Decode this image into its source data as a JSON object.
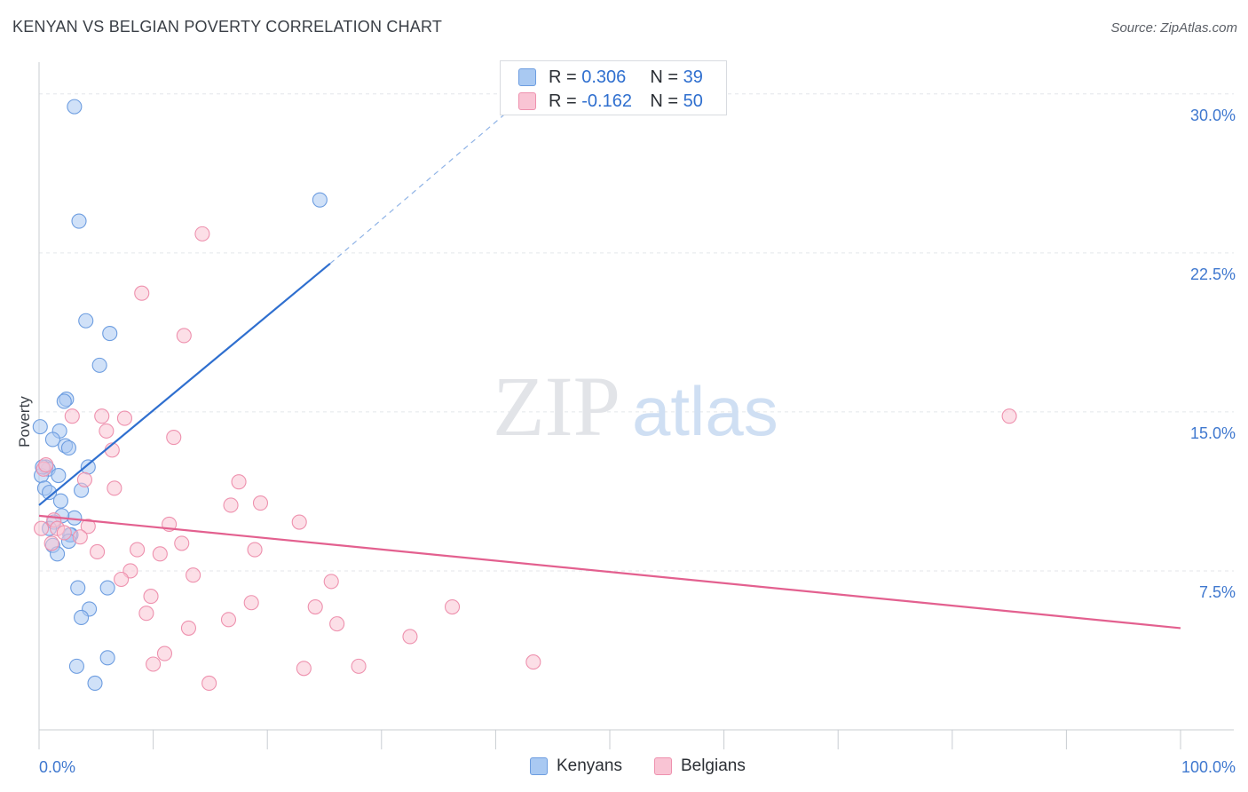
{
  "title": "KENYAN VS BELGIAN POVERTY CORRELATION CHART",
  "source": "Source: ZipAtlas.com",
  "watermark": {
    "zip": "ZIP",
    "atlas": "atlas"
  },
  "legend_box": [
    {
      "r_label": "R =",
      "r_value": "0.306",
      "n_label": "N =",
      "n_value": "39",
      "color": "#a9c9f2",
      "border": "#6d9de0"
    },
    {
      "r_label": "R =",
      "r_value": "-0.162",
      "n_label": "N =",
      "n_value": "50",
      "color": "#f9c4d4",
      "border": "#ee91ae"
    }
  ],
  "bottom_legend": [
    {
      "label": "Kenyans",
      "color": "#a9c9f2",
      "border": "#6d9de0"
    },
    {
      "label": "Belgians",
      "color": "#f9c4d4",
      "border": "#ee91ae"
    }
  ],
  "chart_data": {
    "type": "scatter",
    "title": "KENYAN VS BELGIAN POVERTY CORRELATION CHART",
    "xlabel": "",
    "ylabel": "Poverty",
    "xlim": [
      0,
      100
    ],
    "ylim": [
      0,
      31.5
    ],
    "x_tick_labels": [
      "0.0%",
      "100.0%"
    ],
    "y_ticks": [
      7.5,
      15.0,
      22.5,
      30.0
    ],
    "y_tick_labels": [
      "7.5%",
      "15.0%",
      "22.5%",
      "30.0%"
    ],
    "series": [
      {
        "name": "Kenyans",
        "color": "#6d9de0",
        "fill": "#a9c9f2",
        "trendline": {
          "x": [
            0,
            25.5
          ],
          "y": [
            10.6,
            22.0
          ],
          "extended_to": [
            42,
            29.6
          ],
          "color": "#2f6fcf"
        },
        "points": [
          [
            3.1,
            29.4
          ],
          [
            3.5,
            24.0
          ],
          [
            24.6,
            25.0
          ],
          [
            4.1,
            19.3
          ],
          [
            6.2,
            18.7
          ],
          [
            5.3,
            17.2
          ],
          [
            2.4,
            15.6
          ],
          [
            2.2,
            15.5
          ],
          [
            0.1,
            14.3
          ],
          [
            1.8,
            14.1
          ],
          [
            1.2,
            13.7
          ],
          [
            2.3,
            13.4
          ],
          [
            2.6,
            13.3
          ],
          [
            4.3,
            12.4
          ],
          [
            0.6,
            12.4
          ],
          [
            0.8,
            12.3
          ],
          [
            0.2,
            12.0
          ],
          [
            1.7,
            12.0
          ],
          [
            0.5,
            11.4
          ],
          [
            0.9,
            11.2
          ],
          [
            3.7,
            11.3
          ],
          [
            1.9,
            10.8
          ],
          [
            3.1,
            10.0
          ],
          [
            2.0,
            10.1
          ],
          [
            1.3,
            9.8
          ],
          [
            0.9,
            9.5
          ],
          [
            2.8,
            9.2
          ],
          [
            2.7,
            9.2
          ],
          [
            2.6,
            8.9
          ],
          [
            1.2,
            8.7
          ],
          [
            1.6,
            8.3
          ],
          [
            3.4,
            6.7
          ],
          [
            6.0,
            6.7
          ],
          [
            4.4,
            5.7
          ],
          [
            3.7,
            5.3
          ],
          [
            6.0,
            3.4
          ],
          [
            3.3,
            3.0
          ],
          [
            4.9,
            2.2
          ],
          [
            0.3,
            12.4
          ]
        ]
      },
      {
        "name": "Belgians",
        "color": "#ee91ae",
        "fill": "#f9c4d4",
        "trendline": {
          "x": [
            0,
            100
          ],
          "y": [
            10.1,
            4.8
          ],
          "color": "#e3608f"
        },
        "points": [
          [
            14.3,
            23.4
          ],
          [
            9.0,
            20.6
          ],
          [
            12.7,
            18.6
          ],
          [
            2.9,
            14.8
          ],
          [
            5.5,
            14.8
          ],
          [
            7.5,
            14.7
          ],
          [
            85.0,
            14.8
          ],
          [
            5.9,
            14.1
          ],
          [
            11.8,
            13.8
          ],
          [
            6.4,
            13.2
          ],
          [
            0.4,
            12.3
          ],
          [
            0.6,
            12.5
          ],
          [
            4.0,
            11.8
          ],
          [
            17.5,
            11.7
          ],
          [
            6.6,
            11.4
          ],
          [
            19.4,
            10.7
          ],
          [
            16.8,
            10.6
          ],
          [
            1.3,
            9.9
          ],
          [
            11.4,
            9.7
          ],
          [
            22.8,
            9.8
          ],
          [
            4.3,
            9.6
          ],
          [
            1.6,
            9.5
          ],
          [
            2.2,
            9.3
          ],
          [
            3.6,
            9.1
          ],
          [
            12.5,
            8.8
          ],
          [
            8.6,
            8.5
          ],
          [
            5.1,
            8.4
          ],
          [
            10.6,
            8.3
          ],
          [
            18.9,
            8.5
          ],
          [
            1.1,
            8.8
          ],
          [
            8.0,
            7.5
          ],
          [
            13.5,
            7.3
          ],
          [
            7.2,
            7.1
          ],
          [
            25.6,
            7.0
          ],
          [
            9.8,
            6.3
          ],
          [
            18.6,
            6.0
          ],
          [
            36.2,
            5.8
          ],
          [
            24.2,
            5.8
          ],
          [
            9.4,
            5.5
          ],
          [
            16.6,
            5.2
          ],
          [
            26.1,
            5.0
          ],
          [
            13.1,
            4.8
          ],
          [
            32.5,
            4.4
          ],
          [
            11.0,
            3.6
          ],
          [
            10.0,
            3.1
          ],
          [
            28.0,
            3.0
          ],
          [
            23.2,
            2.9
          ],
          [
            43.3,
            3.2
          ],
          [
            14.9,
            2.2
          ],
          [
            0.2,
            9.5
          ]
        ]
      }
    ]
  }
}
